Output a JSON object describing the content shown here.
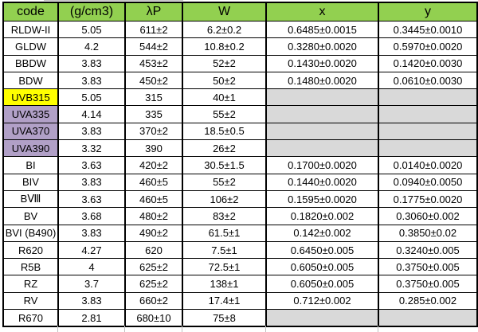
{
  "table": {
    "columns": [
      {
        "key": "code",
        "label": "code"
      },
      {
        "key": "density",
        "label": "(g/cm3)"
      },
      {
        "key": "lambda",
        "label": "λP"
      },
      {
        "key": "w",
        "label": "W"
      },
      {
        "key": "x",
        "label": "x"
      },
      {
        "key": "y",
        "label": "y"
      }
    ],
    "rows": [
      {
        "highlight": null,
        "cells": {
          "code": "RLDW-II",
          "density": "5.05",
          "lambda": "611±2",
          "w": "6.2±0.2",
          "x": "0.6485±0.0015",
          "y": "0.3445±0.0010"
        }
      },
      {
        "highlight": null,
        "cells": {
          "code": "GLDW",
          "density": "4.2",
          "lambda": "544±2",
          "w": "10.8±0.2",
          "x": "0.3280±0.0020",
          "y": "0.5970±0.0020"
        }
      },
      {
        "highlight": null,
        "cells": {
          "code": "BBDW",
          "density": "3.83",
          "lambda": "453±2",
          "w": "52±2",
          "x": "0.1430±0.0020",
          "y": "0.1420±0.0030"
        }
      },
      {
        "highlight": null,
        "cells": {
          "code": "BDW",
          "density": "3.83",
          "lambda": "450±2",
          "w": "50±2",
          "x": "0.1480±0.0020",
          "y": "0.0610±0.0030"
        }
      },
      {
        "highlight": "yellow",
        "cells": {
          "code": "UVB315",
          "density": "5.05",
          "lambda": "315",
          "w": "40±1",
          "x": "",
          "y": ""
        }
      },
      {
        "highlight": "purple",
        "cells": {
          "code": "UVA335",
          "density": "4.14",
          "lambda": "335",
          "w": "55±2",
          "x": "",
          "y": ""
        }
      },
      {
        "highlight": "purple",
        "cells": {
          "code": "UVA370",
          "density": "3.83",
          "lambda": "370±2",
          "w": "18.5±0.5",
          "x": "",
          "y": ""
        }
      },
      {
        "highlight": "purple",
        "cells": {
          "code": "UVA390",
          "density": "3.32",
          "lambda": "390",
          "w": "26±2",
          "x": "",
          "y": ""
        }
      },
      {
        "highlight": null,
        "cells": {
          "code": "BI",
          "density": "3.63",
          "lambda": "420±2",
          "w": "30.5±1.5",
          "x": "0.1700±0.0020",
          "y": "0.0140±0.0020"
        }
      },
      {
        "highlight": null,
        "cells": {
          "code": "BIV",
          "density": "3.83",
          "lambda": "460±5",
          "w": "55±2",
          "x": "0.1440±0.0020",
          "y": "0.0940±0.0050"
        }
      },
      {
        "highlight": null,
        "cells": {
          "code": "BⅧ",
          "density": "3.63",
          "lambda": "460±5",
          "w": "106±2",
          "x": "0.1595±0.0020",
          "y": "0.1775±0.0020"
        }
      },
      {
        "highlight": null,
        "cells": {
          "code": "BV",
          "density": "3.68",
          "lambda": "480±2",
          "w": "83±2",
          "x": "0.1820±0.002",
          "y": "0.3060±0.002"
        }
      },
      {
        "highlight": null,
        "cells": {
          "code": "BVI (B490)",
          "density": "3.83",
          "lambda": "490±2",
          "w": "61.5±1",
          "x": "0.142±0.002",
          "y": "0.3850±0.02"
        }
      },
      {
        "highlight": null,
        "cells": {
          "code": "R620",
          "density": "4.27",
          "lambda": "620",
          "w": "7.5±1",
          "x": "0.6450±0.005",
          "y": "0.3240±0.005"
        }
      },
      {
        "highlight": null,
        "cells": {
          "code": "R5B",
          "density": "4",
          "lambda": "625±2",
          "w": "72.5±1",
          "x": "0.6050±0.005",
          "y": "0.3750±0.005"
        }
      },
      {
        "highlight": null,
        "cells": {
          "code": "RZ",
          "density": "3.7",
          "lambda": "625±2",
          "w": "138±1",
          "x": "0.6050±0.005",
          "y": "0.3750±0.005"
        }
      },
      {
        "highlight": null,
        "cells": {
          "code": "RV",
          "density": "3.83",
          "lambda": "660±2",
          "w": "17.4±1",
          "x": "0.712±0.002",
          "y": "0.285±0.002"
        }
      },
      {
        "highlight": null,
        "cells": {
          "code": "R670",
          "density": "2.81",
          "lambda": "680±10",
          "w": "75±8",
          "x": "",
          "y": ""
        }
      }
    ]
  },
  "colors": {
    "header_green": "#92d050",
    "highlight_yellow": "#ffff00",
    "highlight_purple": "#b1a0c7",
    "empty_cell_gray": "#d9d9d9",
    "border_black": "#000000",
    "gridline_gray": "#c0c0c0"
  }
}
